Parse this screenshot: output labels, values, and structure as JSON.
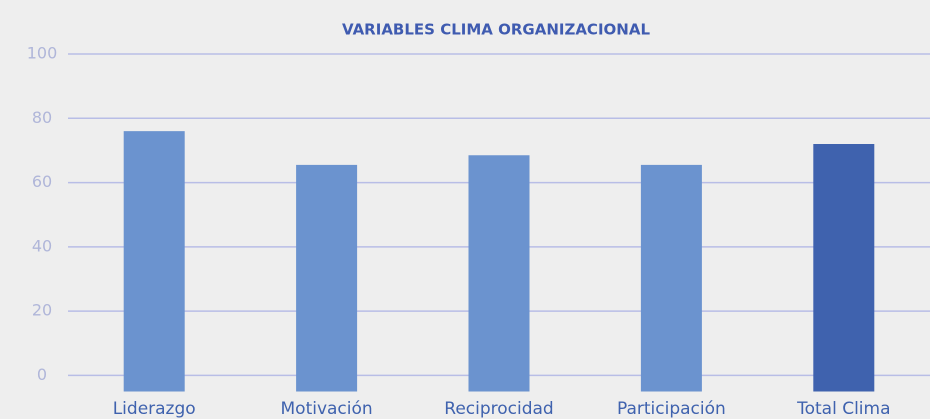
{
  "chart_data": {
    "type": "bar",
    "title": "VARIABLES CLIMA ORGANIZACIONAL",
    "categories": [
      "Liderazgo",
      "Motivación",
      "Reciprocidad",
      "Participación",
      "Total Clima"
    ],
    "values": [
      76,
      65.5,
      68.5,
      65.5,
      72
    ],
    "colors": [
      "#6b93cf",
      "#6b93cf",
      "#6b93cf",
      "#6b93cf",
      "#3f62ae"
    ],
    "ylim": [
      -5,
      100
    ],
    "yticks": [
      0,
      20,
      40,
      60,
      80,
      100
    ],
    "grid": true
  }
}
